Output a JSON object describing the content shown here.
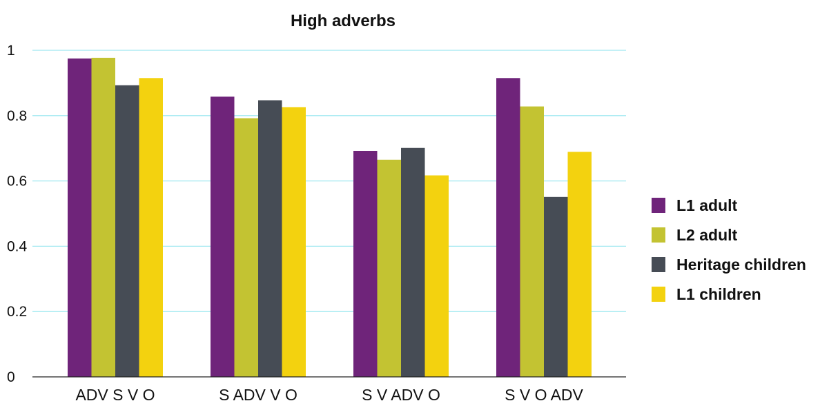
{
  "chart_data": {
    "type": "bar",
    "title": "High adverbs",
    "xlabel": "",
    "ylabel": "",
    "ylim": [
      0,
      1
    ],
    "yticks": [
      0,
      0.2,
      0.4,
      0.6,
      0.8,
      1
    ],
    "ytick_labels": [
      "0",
      "0.2",
      "0.4",
      "0.6",
      "0.8",
      "1"
    ],
    "grid": true,
    "legend_position": "right",
    "categories": [
      "ADV S V O",
      "S ADV V O",
      "S V ADV O",
      "S V O ADV"
    ],
    "series": [
      {
        "name": "L1 adult",
        "color": "#6f247a",
        "values": [
          0.975,
          0.858,
          0.692,
          0.915
        ]
      },
      {
        "name": "L2 adult",
        "color": "#c3c332",
        "values": [
          0.977,
          0.792,
          0.665,
          0.828
        ]
      },
      {
        "name": "Heritage children",
        "color": "#464c55",
        "values": [
          0.893,
          0.847,
          0.701,
          0.551
        ]
      },
      {
        "name": "L1 children",
        "color": "#f3d20f",
        "values": [
          0.915,
          0.826,
          0.617,
          0.689
        ]
      }
    ],
    "grid_color": "#9fe8f0",
    "axis_color": "#222222"
  }
}
